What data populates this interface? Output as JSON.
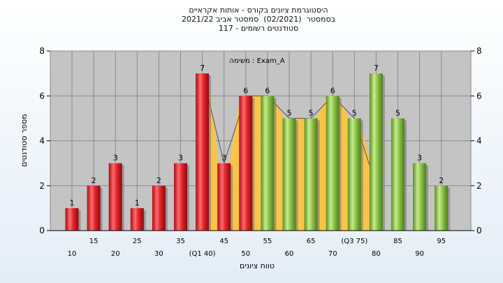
{
  "chart_data": {
    "type": "bar",
    "title_lines": [
      "היסטוגרמת ציונים בקורס - אותות אקראיים",
      "בסמסטר  (02/2021)  סמסטר אביב 2021/22",
      "סטודנטים רשומים - 117"
    ],
    "annotation": "משימה : Exam_A",
    "ylabel": "מספר סטודנטים",
    "xlabel": "טווח ציונים",
    "ylim": [
      0,
      8
    ],
    "yticks": [
      0,
      2,
      4,
      6,
      8
    ],
    "grid": true,
    "categories": [
      "10",
      "15",
      "20",
      "25",
      "30",
      "35",
      "(Q1 40)",
      "45",
      "50",
      "55",
      "60",
      "65",
      "70",
      "(Q3 75)",
      "80",
      "85",
      "90",
      "95"
    ],
    "values": [
      1,
      2,
      3,
      1,
      2,
      3,
      7,
      3,
      6,
      6,
      5,
      5,
      6,
      5,
      7,
      5,
      3,
      2
    ],
    "bar_colors": [
      "red",
      "red",
      "red",
      "red",
      "red",
      "red",
      "red",
      "red",
      "red",
      "green",
      "green",
      "green",
      "green",
      "green",
      "green",
      "green",
      "green",
      "green"
    ],
    "shaded_range": [
      "(Q1 40)",
      "(Q3 75)"
    ],
    "colors": {
      "red_bar": "#e4242a",
      "green_bar": "#8cc44a",
      "plot_bg": "#c4c4c4",
      "quartile_fill": "#fcc442"
    }
  }
}
